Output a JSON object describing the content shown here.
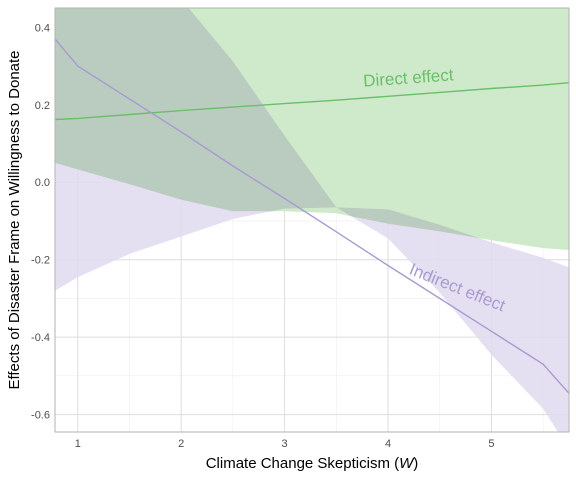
{
  "chart_data": {
    "type": "line",
    "title": "",
    "xlabel_prefix": "Climate Change Skepticism (",
    "xlabel_var": "W",
    "xlabel_suffix": ")",
    "ylabel": "Effects of Disaster Frame on Willingness to Donate",
    "xlim": [
      0.78,
      5.75
    ],
    "ylim": [
      -0.645,
      0.45
    ],
    "x_ticks": [
      1,
      2,
      3,
      4,
      5
    ],
    "y_ticks": [
      -0.6,
      -0.4,
      -0.2,
      0.0,
      0.2,
      0.4
    ],
    "y_tick_labels": [
      "-0.6",
      "-0.4",
      "-0.2",
      "0.0",
      "0.2",
      "0.4"
    ],
    "grid": true,
    "legend": "none",
    "series": [
      {
        "color": "#6abf69",
        "band_color": "#cfe9cb",
        "x": [
          0.78,
          1.0,
          1.5,
          2.0,
          2.5,
          3.0,
          3.5,
          4.0,
          4.5,
          5.0,
          5.5,
          5.75
        ],
        "y": [
          0.162,
          0.165,
          0.175,
          0.185,
          0.194,
          0.203,
          0.212,
          0.222,
          0.232,
          0.242,
          0.251,
          0.257
        ],
        "lower": [
          0.05,
          0.033,
          -0.005,
          -0.045,
          -0.075,
          -0.075,
          -0.08,
          -0.107,
          -0.127,
          -0.15,
          -0.17,
          -0.175
        ],
        "upper": [
          0.56,
          0.56,
          0.56,
          0.56,
          0.56,
          0.56,
          0.56,
          0.56,
          0.56,
          0.56,
          0.56,
          0.56
        ]
      },
      {
        "color": "#a99bd1",
        "band_color": "#e1daee",
        "x": [
          0.78,
          1.0,
          1.5,
          2.0,
          2.5,
          3.0,
          3.5,
          4.0,
          4.5,
          5.0,
          5.5,
          5.75
        ],
        "y": [
          0.37,
          0.3,
          0.215,
          0.13,
          0.042,
          -0.042,
          -0.128,
          -0.215,
          -0.3,
          -0.385,
          -0.47,
          -0.545
        ],
        "lower": [
          -0.28,
          -0.245,
          -0.185,
          -0.14,
          -0.095,
          -0.068,
          -0.065,
          -0.145,
          -0.285,
          -0.445,
          -0.585,
          -0.69
        ],
        "upper": [
          0.56,
          0.56,
          0.56,
          0.473,
          0.312,
          0.12,
          -0.065,
          -0.07,
          -0.11,
          -0.155,
          -0.195,
          -0.22
        ]
      }
    ],
    "annotations": [
      {
        "text": "Direct effect",
        "x": 4.2,
        "y": 0.255,
        "color": "#6abf69",
        "angle_deg": -4
      },
      {
        "text": "Indirect effect",
        "x": 4.65,
        "y": -0.285,
        "color": "#a99bd1",
        "angle_deg": 22
      }
    ]
  }
}
